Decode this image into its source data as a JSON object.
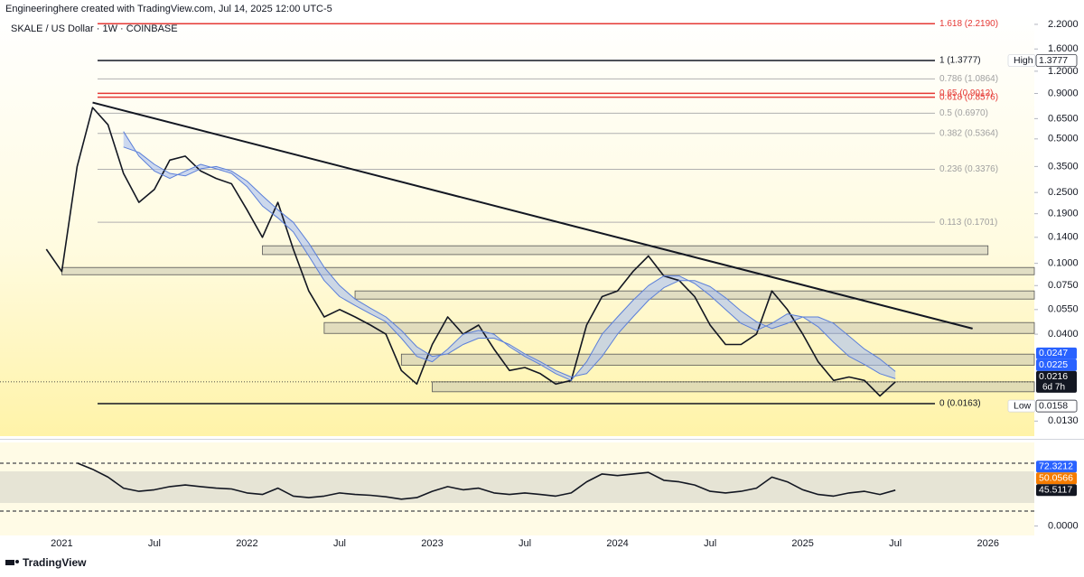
{
  "header": {
    "author_line": "Engineeringhere created with TradingView.com, Jul 14, 2025 12:00 UTC-5",
    "symbol": "SKALE / US Dollar · 1W · COINBASE"
  },
  "footer": {
    "brand": "TradingView"
  },
  "chart_data": [
    {
      "type": "line",
      "log_scale": true,
      "x": [
        "2020-12",
        "2021-01",
        "2021-02",
        "2021-03",
        "2021-04",
        "2021-05",
        "2021-06",
        "2021-07",
        "2021-08",
        "2021-09",
        "2021-10",
        "2021-11",
        "2021-12",
        "2022-01",
        "2022-02",
        "2022-03",
        "2022-04",
        "2022-05",
        "2022-06",
        "2022-07",
        "2022-08",
        "2022-09",
        "2022-10",
        "2022-11",
        "2022-12",
        "2023-01",
        "2023-02",
        "2023-03",
        "2023-04",
        "2023-05",
        "2023-06",
        "2023-07",
        "2023-08",
        "2023-09",
        "2023-10",
        "2023-11",
        "2023-12",
        "2024-01",
        "2024-02",
        "2024-03",
        "2024-04",
        "2024-05",
        "2024-06",
        "2024-07",
        "2024-08",
        "2024-09",
        "2024-10",
        "2024-11",
        "2024-12",
        "2025-01",
        "2025-02",
        "2025-03",
        "2025-04",
        "2025-05",
        "2025-06",
        "2025-07"
      ],
      "xlim": [
        "2020-09",
        "2026-04"
      ],
      "xticks": [
        {
          "value": "2021-01",
          "label": "2021"
        },
        {
          "value": "2021-07",
          "label": "Jul"
        },
        {
          "value": "2022-01",
          "label": "2022"
        },
        {
          "value": "2022-07",
          "label": "Jul"
        },
        {
          "value": "2023-01",
          "label": "2023"
        },
        {
          "value": "2023-07",
          "label": "Jul"
        },
        {
          "value": "2024-01",
          "label": "2024"
        },
        {
          "value": "2024-07",
          "label": "Jul"
        },
        {
          "value": "2025-01",
          "label": "2025"
        },
        {
          "value": "2025-07",
          "label": "Jul"
        },
        {
          "value": "2026-01",
          "label": "2026"
        }
      ],
      "ylim": [
        0.0107,
        2.53
      ],
      "yticks": [
        {
          "value": 2.2,
          "label": "2.2000"
        },
        {
          "value": 1.6,
          "label": "1.6000"
        },
        {
          "value": 1.2,
          "label": "1.2000"
        },
        {
          "value": 0.9,
          "label": "0.9000"
        },
        {
          "value": 0.65,
          "label": "0.6500"
        },
        {
          "value": 0.5,
          "label": "0.5000"
        },
        {
          "value": 0.35,
          "label": "0.3500"
        },
        {
          "value": 0.25,
          "label": "0.2500"
        },
        {
          "value": 0.19,
          "label": "0.1900"
        },
        {
          "value": 0.14,
          "label": "0.1400"
        },
        {
          "value": 0.1,
          "label": "0.1000"
        },
        {
          "value": 0.075,
          "label": "0.0750"
        },
        {
          "value": 0.055,
          "label": "0.0550"
        },
        {
          "value": 0.04,
          "label": "0.0400"
        },
        {
          "value": 0.013,
          "label": "0.0130"
        }
      ],
      "series": [
        {
          "color": "#131722",
          "values": [
            0.12,
            0.09,
            0.35,
            0.75,
            0.6,
            0.32,
            0.22,
            0.26,
            0.38,
            0.4,
            0.33,
            0.3,
            0.28,
            0.2,
            0.14,
            0.22,
            0.12,
            0.07,
            0.05,
            0.055,
            0.05,
            0.045,
            0.04,
            0.025,
            0.021,
            0.035,
            0.05,
            0.04,
            0.045,
            0.033,
            0.025,
            0.026,
            0.024,
            0.021,
            0.022,
            0.045,
            0.065,
            0.07,
            0.09,
            0.11,
            0.085,
            0.08,
            0.065,
            0.045,
            0.035,
            0.035,
            0.04,
            0.07,
            0.055,
            0.04,
            0.028,
            0.022,
            0.023,
            0.022,
            0.018,
            0.0216
          ]
        },
        {
          "color": "#5b7fd9",
          "values": [
            null,
            null,
            null,
            null,
            null,
            0.55,
            0.4,
            0.33,
            0.3,
            0.33,
            0.36,
            0.34,
            0.32,
            0.27,
            0.21,
            0.18,
            0.15,
            0.11,
            0.08,
            0.065,
            0.058,
            0.052,
            0.047,
            0.038,
            0.03,
            0.028,
            0.033,
            0.04,
            0.042,
            0.04,
            0.034,
            0.03,
            0.027,
            0.024,
            0.022,
            0.028,
            0.04,
            0.05,
            0.062,
            0.075,
            0.085,
            0.085,
            0.077,
            0.066,
            0.055,
            0.046,
            0.042,
            0.046,
            0.052,
            0.05,
            0.044,
            0.036,
            0.03,
            0.027,
            0.024,
            0.0225
          ]
        },
        {
          "color": "#5b7fd9",
          "values": [
            null,
            null,
            null,
            null,
            null,
            0.45,
            0.42,
            0.36,
            0.32,
            0.31,
            0.34,
            0.35,
            0.33,
            0.29,
            0.24,
            0.2,
            0.17,
            0.13,
            0.095,
            0.075,
            0.063,
            0.056,
            0.05,
            0.042,
            0.034,
            0.03,
            0.031,
            0.035,
            0.038,
            0.038,
            0.035,
            0.031,
            0.028,
            0.025,
            0.023,
            0.024,
            0.03,
            0.04,
            0.05,
            0.062,
            0.073,
            0.08,
            0.08,
            0.074,
            0.064,
            0.054,
            0.047,
            0.043,
            0.046,
            0.05,
            0.05,
            0.046,
            0.039,
            0.033,
            0.029,
            0.0247
          ]
        }
      ],
      "ribbon_fill": "#aabff0",
      "levels": [
        {
          "value": 2.219,
          "label": "1.618 (2.2190)",
          "color": "#e53935"
        },
        {
          "value": 1.3777,
          "label": "1 (1.3777)",
          "color": "#131722"
        },
        {
          "value": 1.0864,
          "label": "0.786 (1.0864)",
          "color": "#b0b0b0"
        },
        {
          "value": 0.9012,
          "label": "0.65 (0.9012)",
          "color": "#e53935"
        },
        {
          "value": 0.8576,
          "label": "0.618 (0.8576)",
          "color": "#e53935"
        },
        {
          "value": 0.697,
          "label": "0.5 (0.6970)",
          "color": "#b0b0b0"
        },
        {
          "value": 0.5364,
          "label": "0.382 (0.5364)",
          "color": "#b0b0b0"
        },
        {
          "value": 0.3376,
          "label": "0.236 (0.3376)",
          "color": "#b0b0b0"
        },
        {
          "value": 0.1701,
          "label": "0.113 (0.1701)",
          "color": "#b0b0b0"
        },
        {
          "value": 0.0163,
          "label": "0 (0.0163)",
          "color": "#131722"
        }
      ],
      "zones": [
        {
          "low": 0.112,
          "high": 0.1255,
          "start": "2022-02",
          "end": "2026-01"
        },
        {
          "low": 0.0863,
          "high": 0.0948,
          "start": "2021-01",
          "end": "2026-04"
        },
        {
          "low": 0.063,
          "high": 0.07,
          "start": "2022-08",
          "end": "2026-04"
        },
        {
          "low": 0.0404,
          "high": 0.0465,
          "start": "2022-06",
          "end": "2026-04"
        },
        {
          "low": 0.0268,
          "high": 0.0309,
          "start": "2022-11",
          "end": "2026-04"
        },
        {
          "low": 0.019,
          "high": 0.0216,
          "start": "2023-01",
          "end": "2026-04"
        }
      ],
      "trendline": {
        "x": [
          "2021-03",
          "2025-12"
        ],
        "values": [
          0.8,
          0.043
        ],
        "color": "#131722"
      },
      "tags": [
        {
          "value": 1.3777,
          "caption": "High",
          "color": "#ffffff"
        },
        {
          "value": 0.0247,
          "color": "#2962ff"
        },
        {
          "value": 0.0225,
          "color": "#2962ff"
        },
        {
          "value": 0.0216,
          "countdown": "6d 7h",
          "color": "#131722"
        },
        {
          "value": 0.0158,
          "caption": "Low",
          "color": "#ffffff"
        }
      ]
    },
    {
      "type": "line",
      "x": [
        "2020-12",
        "2021-01",
        "2021-02",
        "2021-03",
        "2021-04",
        "2021-05",
        "2021-06",
        "2021-07",
        "2021-08",
        "2021-09",
        "2021-10",
        "2021-11",
        "2021-12",
        "2022-01",
        "2022-02",
        "2022-03",
        "2022-04",
        "2022-05",
        "2022-06",
        "2022-07",
        "2022-08",
        "2022-09",
        "2022-10",
        "2022-11",
        "2022-12",
        "2023-01",
        "2023-02",
        "2023-03",
        "2023-04",
        "2023-05",
        "2023-06",
        "2023-07",
        "2023-08",
        "2023-09",
        "2023-10",
        "2023-11",
        "2023-12",
        "2024-01",
        "2024-02",
        "2024-03",
        "2024-04",
        "2024-05",
        "2024-06",
        "2024-07",
        "2024-08",
        "2024-09",
        "2024-10",
        "2024-11",
        "2024-12",
        "2025-01",
        "2025-02",
        "2025-03",
        "2025-04",
        "2025-05",
        "2025-06",
        "2025-07"
      ],
      "xlim": [
        "2020-09",
        "2026-04"
      ],
      "ylim": [
        -12,
        106
      ],
      "yticks": [
        {
          "value": 0,
          "label": "0.0000"
        }
      ],
      "series": [
        {
          "color": "#131722",
          "values": [
            null,
            null,
            80,
            72,
            62,
            48,
            44,
            46,
            50,
            52,
            50,
            48,
            47,
            42,
            40,
            48,
            38,
            36,
            38,
            42,
            40,
            39,
            37,
            34,
            36,
            44,
            50,
            46,
            48,
            42,
            40,
            42,
            40,
            38,
            42,
            56,
            66,
            64,
            66,
            68,
            58,
            56,
            52,
            44,
            42,
            44,
            48,
            62,
            56,
            46,
            40,
            38,
            42,
            44,
            40,
            45.5117
          ]
        }
      ],
      "tags": [
        {
          "value": 72.3212,
          "color": "#2962ff"
        },
        {
          "value": 50.0566,
          "color": "#f57c00"
        },
        {
          "value": 45.5117,
          "color": "#131722"
        }
      ]
    }
  ]
}
